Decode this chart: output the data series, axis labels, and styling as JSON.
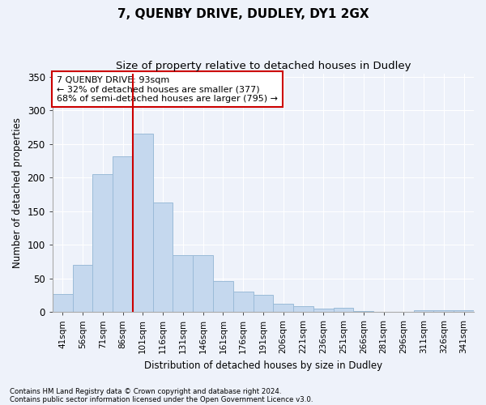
{
  "title": "7, QUENBY DRIVE, DUDLEY, DY1 2GX",
  "subtitle": "Size of property relative to detached houses in Dudley",
  "xlabel": "Distribution of detached houses by size in Dudley",
  "ylabel": "Number of detached properties",
  "categories": [
    "41sqm",
    "56sqm",
    "71sqm",
    "86sqm",
    "101sqm",
    "116sqm",
    "131sqm",
    "146sqm",
    "161sqm",
    "176sqm",
    "191sqm",
    "206sqm",
    "221sqm",
    "236sqm",
    "251sqm",
    "266sqm",
    "281sqm",
    "296sqm",
    "311sqm",
    "326sqm",
    "341sqm"
  ],
  "values": [
    27,
    70,
    205,
    232,
    265,
    163,
    85,
    85,
    46,
    30,
    25,
    12,
    8,
    5,
    6,
    1,
    0,
    0,
    3,
    2,
    2
  ],
  "bar_color": "#c5d8ee",
  "bar_edge_color": "#9bbbd8",
  "vline_color": "#cc0000",
  "vline_pos": 3.5,
  "annotation_text": "7 QUENBY DRIVE: 93sqm\n← 32% of detached houses are smaller (377)\n68% of semi-detached houses are larger (795) →",
  "annotation_box_color": "#ffffff",
  "annotation_box_edge_color": "#cc0000",
  "footnote1": "Contains HM Land Registry data © Crown copyright and database right 2024.",
  "footnote2": "Contains public sector information licensed under the Open Government Licence v3.0.",
  "bg_color": "#eef2fa",
  "plot_bg_color": "#eef2fa",
  "ylim": [
    0,
    355
  ],
  "yticks": [
    0,
    50,
    100,
    150,
    200,
    250,
    300,
    350
  ]
}
